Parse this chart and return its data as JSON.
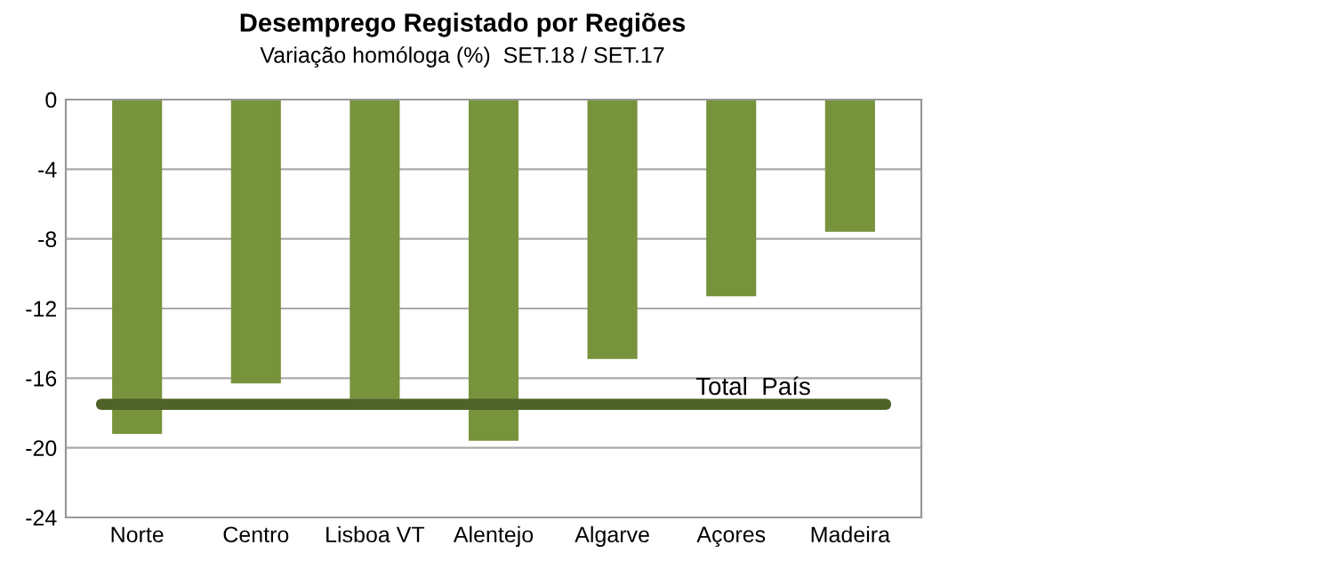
{
  "chart_data": {
    "type": "bar",
    "title": "Desemprego Registado por Regiões",
    "subtitle": "Variação homóloga (%)  SET.18 / SET.17",
    "categories": [
      "Norte",
      "Centro",
      "Lisboa VT",
      "Alentejo",
      "Algarve",
      "Açores",
      "Madeira"
    ],
    "values": [
      -19.2,
      -16.3,
      -17.2,
      -19.6,
      -14.9,
      -11.3,
      -7.6
    ],
    "color": "#77933c",
    "ylim": [
      -24,
      0
    ],
    "yticks": [
      0,
      -4,
      -8,
      -12,
      -16,
      -20,
      -24
    ],
    "grid": "y",
    "ref_lines": [
      {
        "axis": "y",
        "value": -17.5,
        "label": "Total  País",
        "color": "#4f6228"
      }
    ]
  }
}
